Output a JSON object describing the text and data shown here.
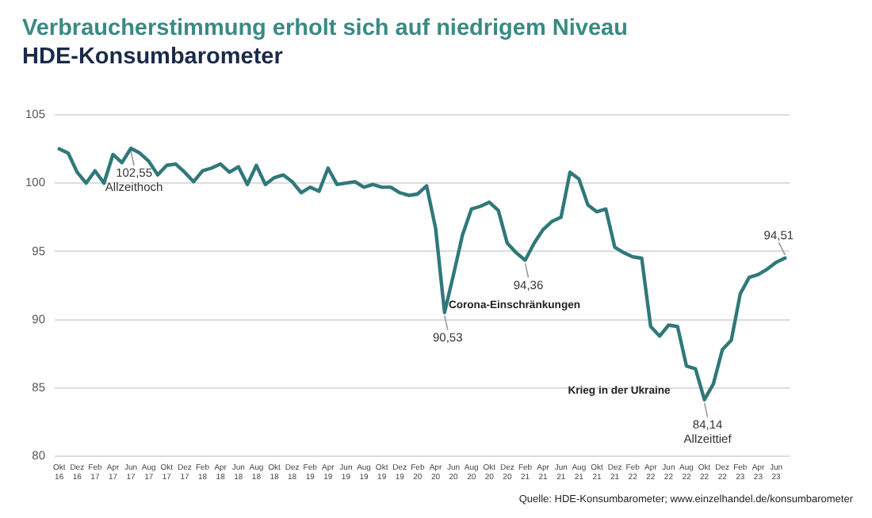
{
  "chart_data": {
    "type": "line",
    "title": "Verbraucherstimmung erholt sich auf niedrigem Niveau",
    "subtitle": "HDE-Konsumbarometer",
    "categories": [
      "Okt 16",
      null,
      "Dez 16",
      null,
      "Feb 17",
      null,
      "Apr 17",
      null,
      "Jun 17",
      null,
      "Aug 17",
      null,
      "Okt 17",
      null,
      "Dez 17",
      null,
      "Feb 18",
      null,
      "Apr 18",
      null,
      "Jun 18",
      null,
      "Aug 18",
      null,
      "Okt 18",
      null,
      "Dez 18",
      null,
      "Feb 19",
      null,
      "Apr 19",
      null,
      "Jun 19",
      null,
      "Aug 19",
      null,
      "Okt 19",
      null,
      "Dez 19",
      null,
      "Feb 20",
      null,
      "Apr 20",
      null,
      "Jun 20",
      null,
      "Aug 20",
      null,
      "Okt 20",
      null,
      "Dez 20",
      null,
      "Feb 21",
      null,
      "Apr 21",
      null,
      "Jun 21",
      null,
      "Aug 21",
      null,
      "Okt 21",
      null,
      "Dez 21",
      null,
      "Feb 22",
      null,
      "Apr 22",
      null,
      "Jun 22",
      null,
      "Aug 22",
      null,
      "Okt 22",
      null,
      "Dez 22",
      null,
      "Feb 23",
      null,
      "Apr 23",
      null,
      "Jun 23",
      null
    ],
    "series": [
      {
        "color": "#30787a",
        "values": [
          102.5,
          102.2,
          100.8,
          100.0,
          100.9,
          100.0,
          102.1,
          101.5,
          102.55,
          102.2,
          101.6,
          100.6,
          101.3,
          101.4,
          100.8,
          100.1,
          100.9,
          101.1,
          101.4,
          100.8,
          101.2,
          99.9,
          101.3,
          99.9,
          100.4,
          100.6,
          100.1,
          99.3,
          99.7,
          99.4,
          101.1,
          99.9,
          100.0,
          100.1,
          99.7,
          99.9,
          99.7,
          99.7,
          99.3,
          99.1,
          99.2,
          99.8,
          96.7,
          90.53,
          93.3,
          96.2,
          98.1,
          98.3,
          98.6,
          98.0,
          95.6,
          94.9,
          94.36,
          95.6,
          96.6,
          97.2,
          97.5,
          100.8,
          100.3,
          98.4,
          97.9,
          98.1,
          95.3,
          94.9,
          94.6,
          94.5,
          89.5,
          88.8,
          89.6,
          89.5,
          86.6,
          86.4,
          84.14,
          85.3,
          87.8,
          88.5,
          91.9,
          93.1,
          93.3,
          93.7,
          94.2,
          94.51
        ]
      }
    ],
    "ylim": [
      80,
      105
    ],
    "yticks": [
      80,
      85,
      90,
      95,
      100,
      105
    ],
    "grid": "y",
    "legend": false,
    "marker": "none",
    "line_style": "solid",
    "annotations": [
      {
        "text": "102,55",
        "x": "Jun 17",
        "y": 102.55
      },
      {
        "text": "Allzeithoch",
        "x": "Jun 17",
        "y": 102.55
      },
      {
        "text": "90,53",
        "y": 90.53
      },
      {
        "text": "94,36",
        "x": "Feb 21",
        "y": 94.36
      },
      {
        "text": "Corona-Einschränkungen"
      },
      {
        "text": "Krieg in der Ukraine"
      },
      {
        "text": "84,14",
        "x": "Okt 22",
        "y": 84.14
      },
      {
        "text": "Allzeittief",
        "x": "Okt 22",
        "y": 84.14
      },
      {
        "text": "94,51",
        "y": 94.51
      },
      {
        "text": "Quelle: HDE-Konsumbarometer; www.einzelhandel.de/konsumbarometer"
      }
    ]
  }
}
